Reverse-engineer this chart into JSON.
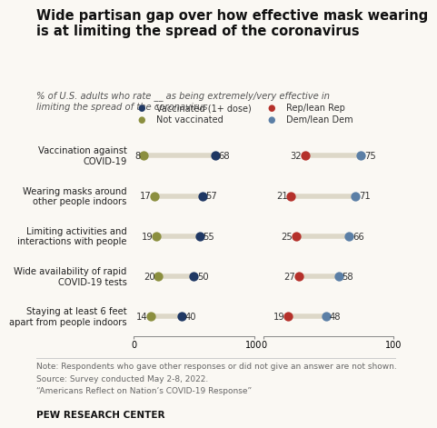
{
  "title": "Wide partisan gap over how effective mask wearing\nis at limiting the spread of the coronavirus",
  "subtitle": "% of U.S. adults who rate __ as being extremely/very effective in\nlimiting the spread of the coronavirus",
  "categories": [
    "Vaccination against\nCOVID-19",
    "Wearing masks around\nother people indoors",
    "Limiting activities and\ninteractions with people",
    "Wide availability of rapid\nCOVID-19 tests",
    "Staying at least 6 feet\napart from people indoors"
  ],
  "vax_low": [
    8,
    17,
    19,
    20,
    14
  ],
  "vax_high": [
    68,
    57,
    55,
    50,
    40
  ],
  "partisan_low": [
    32,
    21,
    25,
    27,
    19
  ],
  "partisan_high": [
    75,
    71,
    66,
    58,
    48
  ],
  "color_vax_low": "#8b8f3f",
  "color_vax_high": "#1f3864",
  "color_partisan_low": "#b5312b",
  "color_partisan_high": "#5b7fa6",
  "line_color": "#ddd8c8",
  "dot_size": 55,
  "legend_items": [
    {
      "label": "Vaccinated (1+ dose)",
      "color": "#1f3864"
    },
    {
      "label": "Not vaccinated",
      "color": "#8b8f3f"
    },
    {
      "label": "Rep/lean Rep",
      "color": "#b5312b"
    },
    {
      "label": "Dem/lean Dem",
      "color": "#5b7fa6"
    }
  ],
  "note_lines": [
    "Note: Respondents who gave other responses or did not give an answer are not shown.",
    "Source: Survey conducted May 2-8, 2022.",
    "“Americans Reflect on Nation’s COVID-19 Response”"
  ],
  "footer": "PEW RESEARCH CENTER",
  "background_color": "#faf8f3"
}
